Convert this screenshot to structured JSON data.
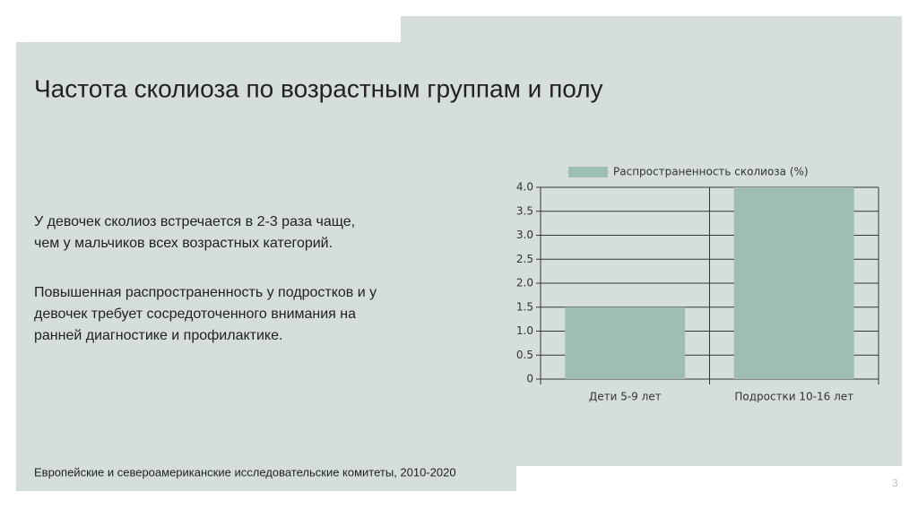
{
  "slide": {
    "title": "Частота сколиоза по возрастным группам и полу",
    "paragraphs": [
      [
        "У девочек сколиоз встречается в 2-3 раза чаще,",
        "чем у мальчиков всех возрастных категорий."
      ],
      [
        "Повышенная распространенность у подростков и у",
        "девочек требует сосредоточенного внимания на",
        "ранней диагностике и профилактике."
      ]
    ],
    "source": "Европейские и североамериканские исследовательские комитеты, 2010-2020",
    "page_number": "3"
  },
  "chart_data": {
    "type": "bar",
    "categories": [
      "Дети 5-9 лет",
      "Подростки 10-16 лет"
    ],
    "series": [
      {
        "name": "Распространенность сколиоза (%)",
        "color": "#9dbdb5",
        "values": [
          1.5,
          4.0
        ]
      }
    ],
    "ylim": [
      0,
      4.0
    ],
    "yticks": [
      0,
      0.5,
      {
        "value": 1,
        "label": "1.0"
      },
      1.5,
      {
        "value": 2,
        "label": "2.0"
      },
      2.5,
      {
        "value": 3,
        "label": "3.0"
      },
      3.5,
      {
        "value": 4,
        "label": "4.0"
      }
    ],
    "grid": true,
    "legend": "top"
  }
}
